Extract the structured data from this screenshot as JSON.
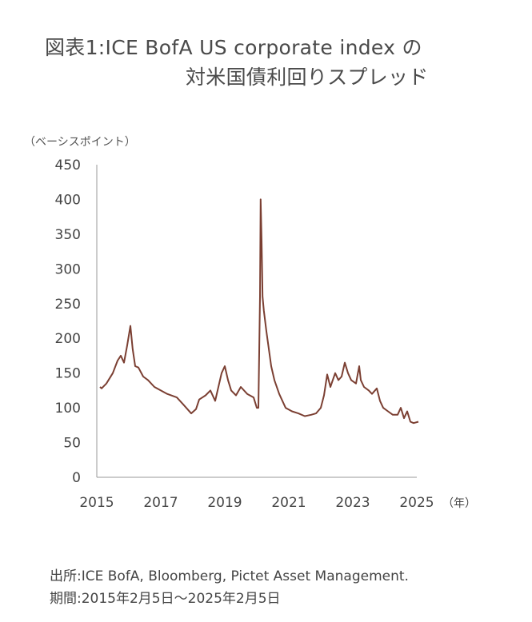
{
  "title_line1": "図表1:ICE BofA US corporate index の",
  "title_line2": "対米国債利回りスプレッド",
  "footer": {
    "source": "出所:ICE BofA, Bloomberg, Pictet Asset Management.",
    "period": "期間:2015年2月5日～2025年2月5日"
  },
  "colors": {
    "line": "#7b3f32",
    "axis": "#999999"
  },
  "chart_data": {
    "type": "line",
    "title": "図表1:ICE BofA US corporate index の 対米国債利回りスプレッド",
    "ylabel": "（ベーシスポイント）",
    "xlabel": "（年）",
    "ylim": [
      0,
      450
    ],
    "xlim": [
      2015,
      2025
    ],
    "y_ticks": [
      "0",
      "50",
      "100",
      "150",
      "200",
      "250",
      "300",
      "350",
      "400",
      "450"
    ],
    "x_ticks": [
      "2015",
      "2017",
      "2019",
      "2021",
      "2023",
      "2025"
    ],
    "grid": false,
    "series": [
      {
        "x": [
          2015.1,
          2015.15,
          2015.3,
          2015.5,
          2015.65,
          2015.75,
          2015.85,
          2015.95,
          2016.05,
          2016.12,
          2016.2,
          2016.3,
          2016.45,
          2016.6,
          2016.8,
          2017.0,
          2017.2,
          2017.5,
          2017.7,
          2017.95,
          2018.1,
          2018.2,
          2018.4,
          2018.55,
          2018.7,
          2018.8,
          2018.9,
          2019.0,
          2019.1,
          2019.2,
          2019.35,
          2019.5,
          2019.7,
          2019.9,
          2020.0,
          2020.05,
          2020.1,
          2020.12,
          2020.15,
          2020.18,
          2020.22,
          2020.3,
          2020.45,
          2020.55,
          2020.7,
          2020.9,
          2021.1,
          2021.3,
          2021.5,
          2021.7,
          2021.85,
          2022.0,
          2022.1,
          2022.2,
          2022.3,
          2022.45,
          2022.55,
          2022.65,
          2022.75,
          2022.85,
          2022.95,
          2023.1,
          2023.2,
          2023.25,
          2023.35,
          2023.5,
          2023.6,
          2023.75,
          2023.85,
          2023.95,
          2024.1,
          2024.25,
          2024.4,
          2024.5,
          2024.6,
          2024.7,
          2024.8,
          2024.9,
          2025.05
        ],
        "values": [
          130,
          128,
          135,
          150,
          168,
          175,
          165,
          190,
          218,
          185,
          160,
          158,
          145,
          140,
          130,
          125,
          120,
          115,
          105,
          92,
          98,
          112,
          118,
          125,
          110,
          130,
          150,
          160,
          140,
          125,
          118,
          130,
          120,
          115,
          100,
          100,
          260,
          400,
          340,
          260,
          240,
          210,
          160,
          140,
          120,
          100,
          95,
          92,
          88,
          90,
          92,
          100,
          118,
          148,
          130,
          150,
          140,
          145,
          165,
          150,
          140,
          135,
          160,
          140,
          130,
          125,
          120,
          128,
          110,
          100,
          95,
          90,
          90,
          100,
          85,
          95,
          80,
          78,
          80
        ]
      }
    ]
  }
}
